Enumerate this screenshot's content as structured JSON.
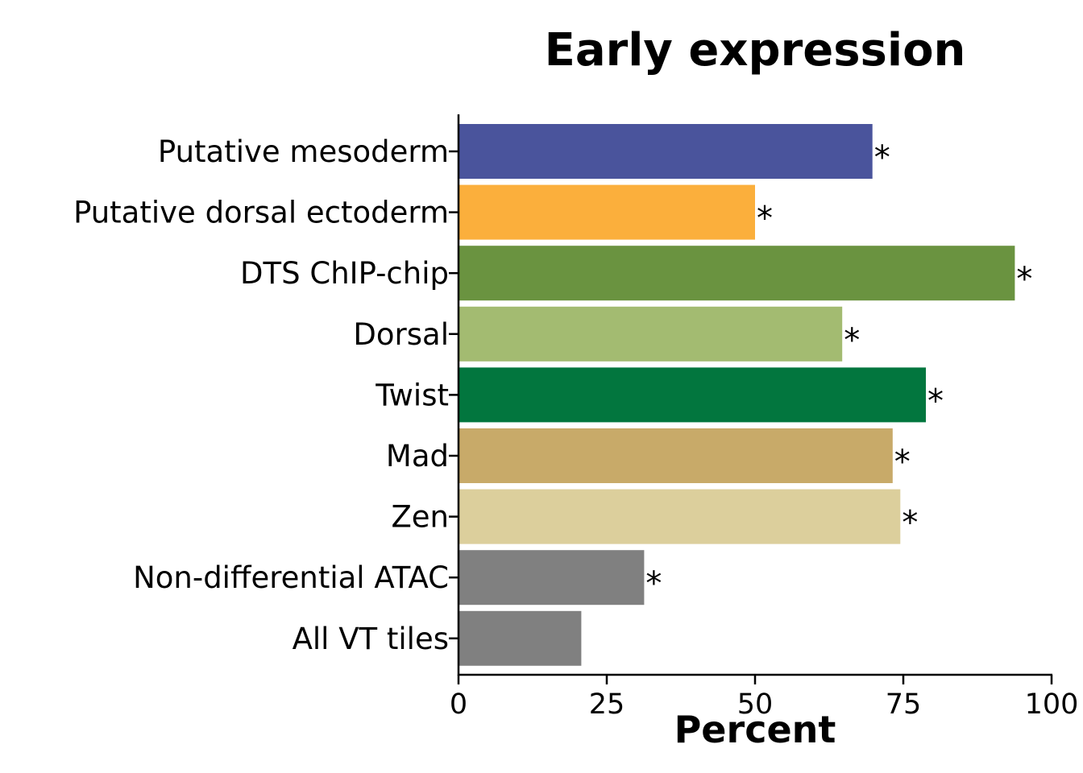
{
  "chart_data": {
    "type": "bar",
    "orientation": "horizontal",
    "title": "Early expression",
    "xlabel": "Percent",
    "ylabel": "",
    "xlim": [
      0,
      100
    ],
    "xticks": [
      "0",
      "25",
      "50",
      "75",
      "100"
    ],
    "categories": [
      "Putative mesoderm",
      "Putative dorsal ectoderm",
      "DTS ChIP-chip",
      "Dorsal",
      "Twist",
      "Mad",
      "Zen",
      "Non-differential ATAC",
      "All VT tiles"
    ],
    "values": [
      69.8,
      50.0,
      93.8,
      64.7,
      78.8,
      73.2,
      74.5,
      31.3,
      20.7
    ],
    "annotations": [
      "*",
      "*",
      "*",
      "*",
      "*",
      "*",
      "*",
      "*",
      ""
    ],
    "colors": [
      "#4a549c",
      "#fbaf3c",
      "#6a9340",
      "#a3bb71",
      "#02763e",
      "#c8aa69",
      "#dccf9c",
      "#808080",
      "#808080"
    ],
    "grid": false,
    "legend": "none"
  }
}
